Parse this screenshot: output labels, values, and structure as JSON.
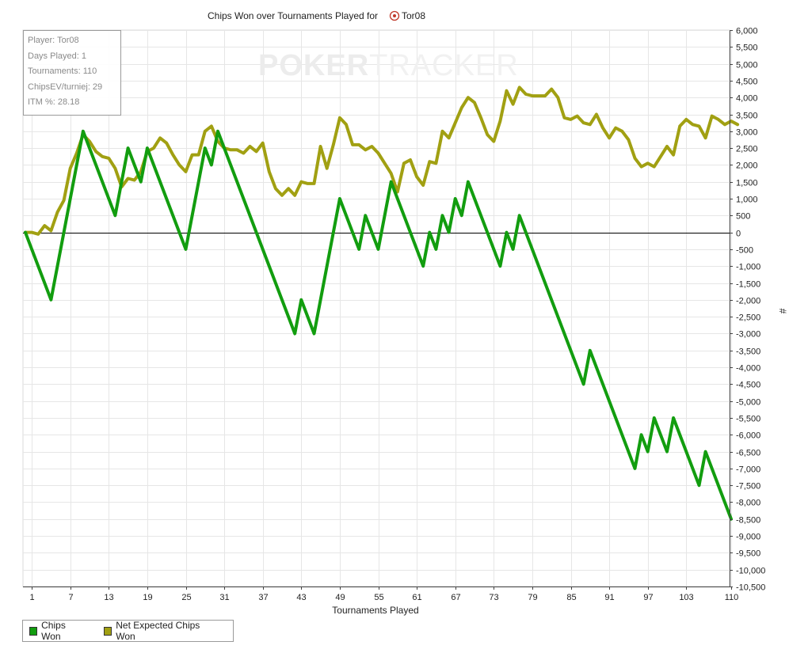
{
  "chart_data": {
    "type": "line",
    "title": "Chips Won over Tournaments Played for",
    "player_name": "Tor08",
    "player_icon": "poker-chip-icon",
    "xlabel": "Tournaments Played",
    "ylabel": "#",
    "xlim": [
      0,
      110
    ],
    "ylim": [
      -10500,
      6000
    ],
    "x_ticks": [
      "1",
      "7",
      "13",
      "19",
      "25",
      "31",
      "37",
      "43",
      "49",
      "55",
      "61",
      "67",
      "73",
      "79",
      "85",
      "91",
      "97",
      "103",
      "110"
    ],
    "y_ticks": [
      "6,000",
      "5,500",
      "5,000",
      "4,500",
      "4,000",
      "3,500",
      "3,000",
      "2,500",
      "2,000",
      "1,500",
      "1,000",
      "500",
      "0",
      "-500",
      "-1,000",
      "-1,500",
      "-2,000",
      "-2,500",
      "-3,000",
      "-3,500",
      "-4,000",
      "-4,500",
      "-5,000",
      "-5,500",
      "-6,000",
      "-6,500",
      "-7,000",
      "-7,500",
      "-8,000",
      "-8,500",
      "-9,000",
      "-9,500",
      "-10,000",
      "-10,500"
    ],
    "grid": true,
    "legend_position": "bottom-left",
    "series": [
      {
        "name": "Chips Won",
        "color": "#129d0f",
        "points": [
          [
            0,
            0
          ],
          [
            4,
            -2000
          ],
          [
            9,
            3000
          ],
          [
            14,
            500
          ],
          [
            16,
            2500
          ],
          [
            18,
            1500
          ],
          [
            19,
            2500
          ],
          [
            25,
            -500
          ],
          [
            28,
            2500
          ],
          [
            29,
            2000
          ],
          [
            30,
            3000
          ],
          [
            42,
            -3000
          ],
          [
            43,
            -2000
          ],
          [
            45,
            -3000
          ],
          [
            49,
            1000
          ],
          [
            52,
            -500
          ],
          [
            53,
            500
          ],
          [
            55,
            -500
          ],
          [
            57,
            1500
          ],
          [
            62,
            -1000
          ],
          [
            63,
            0
          ],
          [
            64,
            -500
          ],
          [
            65,
            500
          ],
          [
            66,
            0
          ],
          [
            67,
            1000
          ],
          [
            68,
            500
          ],
          [
            69,
            1500
          ],
          [
            74,
            -1000
          ],
          [
            75,
            0
          ],
          [
            76,
            -500
          ],
          [
            77,
            500
          ],
          [
            87,
            -4500
          ],
          [
            88,
            -3500
          ],
          [
            95,
            -7000
          ],
          [
            96,
            -6000
          ],
          [
            97,
            -6500
          ],
          [
            98,
            -5500
          ],
          [
            100,
            -6500
          ],
          [
            101,
            -5500
          ],
          [
            105,
            -7500
          ],
          [
            106,
            -6500
          ],
          [
            110,
            -8500
          ]
        ]
      },
      {
        "name": "Net Expected Chips Won",
        "color": "#a1a012",
        "points": [
          [
            0,
            0
          ],
          [
            1,
            0
          ],
          [
            2,
            -50
          ],
          [
            3,
            200
          ],
          [
            4,
            50
          ],
          [
            5,
            600
          ],
          [
            6,
            950
          ],
          [
            7,
            1900
          ],
          [
            8,
            2350
          ],
          [
            9,
            2900
          ],
          [
            10,
            2700
          ],
          [
            11,
            2400
          ],
          [
            12,
            2250
          ],
          [
            13,
            2200
          ],
          [
            14,
            1900
          ],
          [
            15,
            1350
          ],
          [
            16,
            1600
          ],
          [
            17,
            1550
          ],
          [
            18,
            1800
          ],
          [
            19,
            2400
          ],
          [
            20,
            2500
          ],
          [
            21,
            2800
          ],
          [
            22,
            2650
          ],
          [
            23,
            2300
          ],
          [
            24,
            2000
          ],
          [
            25,
            1800
          ],
          [
            26,
            2300
          ],
          [
            27,
            2300
          ],
          [
            28,
            3000
          ],
          [
            29,
            3150
          ],
          [
            30,
            2700
          ],
          [
            31,
            2500
          ],
          [
            32,
            2450
          ],
          [
            33,
            2450
          ],
          [
            34,
            2350
          ],
          [
            35,
            2550
          ],
          [
            36,
            2400
          ],
          [
            37,
            2650
          ],
          [
            38,
            1800
          ],
          [
            39,
            1300
          ],
          [
            40,
            1100
          ],
          [
            41,
            1300
          ],
          [
            42,
            1100
          ],
          [
            43,
            1500
          ],
          [
            44,
            1450
          ],
          [
            45,
            1450
          ],
          [
            46,
            2550
          ],
          [
            47,
            1900
          ],
          [
            48,
            2600
          ],
          [
            49,
            3400
          ],
          [
            50,
            3200
          ],
          [
            51,
            2600
          ],
          [
            52,
            2600
          ],
          [
            53,
            2450
          ],
          [
            54,
            2550
          ],
          [
            55,
            2350
          ],
          [
            56,
            2050
          ],
          [
            57,
            1750
          ],
          [
            58,
            1200
          ],
          [
            59,
            2050
          ],
          [
            60,
            2150
          ],
          [
            61,
            1650
          ],
          [
            62,
            1400
          ],
          [
            63,
            2100
          ],
          [
            64,
            2050
          ],
          [
            65,
            3000
          ],
          [
            66,
            2800
          ],
          [
            67,
            3250
          ],
          [
            68,
            3700
          ],
          [
            69,
            4000
          ],
          [
            70,
            3850
          ],
          [
            71,
            3400
          ],
          [
            72,
            2900
          ],
          [
            73,
            2700
          ],
          [
            74,
            3300
          ],
          [
            75,
            4200
          ],
          [
            76,
            3800
          ],
          [
            77,
            4300
          ],
          [
            78,
            4100
          ],
          [
            79,
            4050
          ],
          [
            80,
            4050
          ],
          [
            81,
            4050
          ],
          [
            82,
            4250
          ],
          [
            83,
            4000
          ],
          [
            84,
            3400
          ],
          [
            85,
            3350
          ],
          [
            86,
            3450
          ],
          [
            87,
            3250
          ],
          [
            88,
            3200
          ],
          [
            89,
            3500
          ],
          [
            90,
            3100
          ],
          [
            91,
            2800
          ],
          [
            92,
            3100
          ],
          [
            93,
            3000
          ],
          [
            94,
            2750
          ],
          [
            95,
            2200
          ],
          [
            96,
            1950
          ],
          [
            97,
            2050
          ],
          [
            98,
            1950
          ],
          [
            99,
            2250
          ],
          [
            100,
            2550
          ],
          [
            101,
            2300
          ],
          [
            102,
            3150
          ],
          [
            103,
            3350
          ],
          [
            104,
            3200
          ],
          [
            105,
            3150
          ],
          [
            106,
            2800
          ],
          [
            107,
            3450
          ],
          [
            108,
            3350
          ],
          [
            109,
            3200
          ],
          [
            110,
            3300
          ],
          [
            111,
            3200
          ]
        ]
      }
    ]
  },
  "info_box": {
    "player": "Player: Tor08",
    "days": "Days Played: 1",
    "tournaments": "Tournaments: 110",
    "chipsev": "ChipsEV/turniej: 29",
    "itm": "ITM %: 28.18"
  },
  "watermark": {
    "part1": "POKER",
    "part2": "TRACKER"
  },
  "legend": {
    "items": [
      "Chips Won",
      "Net Expected Chips Won"
    ]
  }
}
